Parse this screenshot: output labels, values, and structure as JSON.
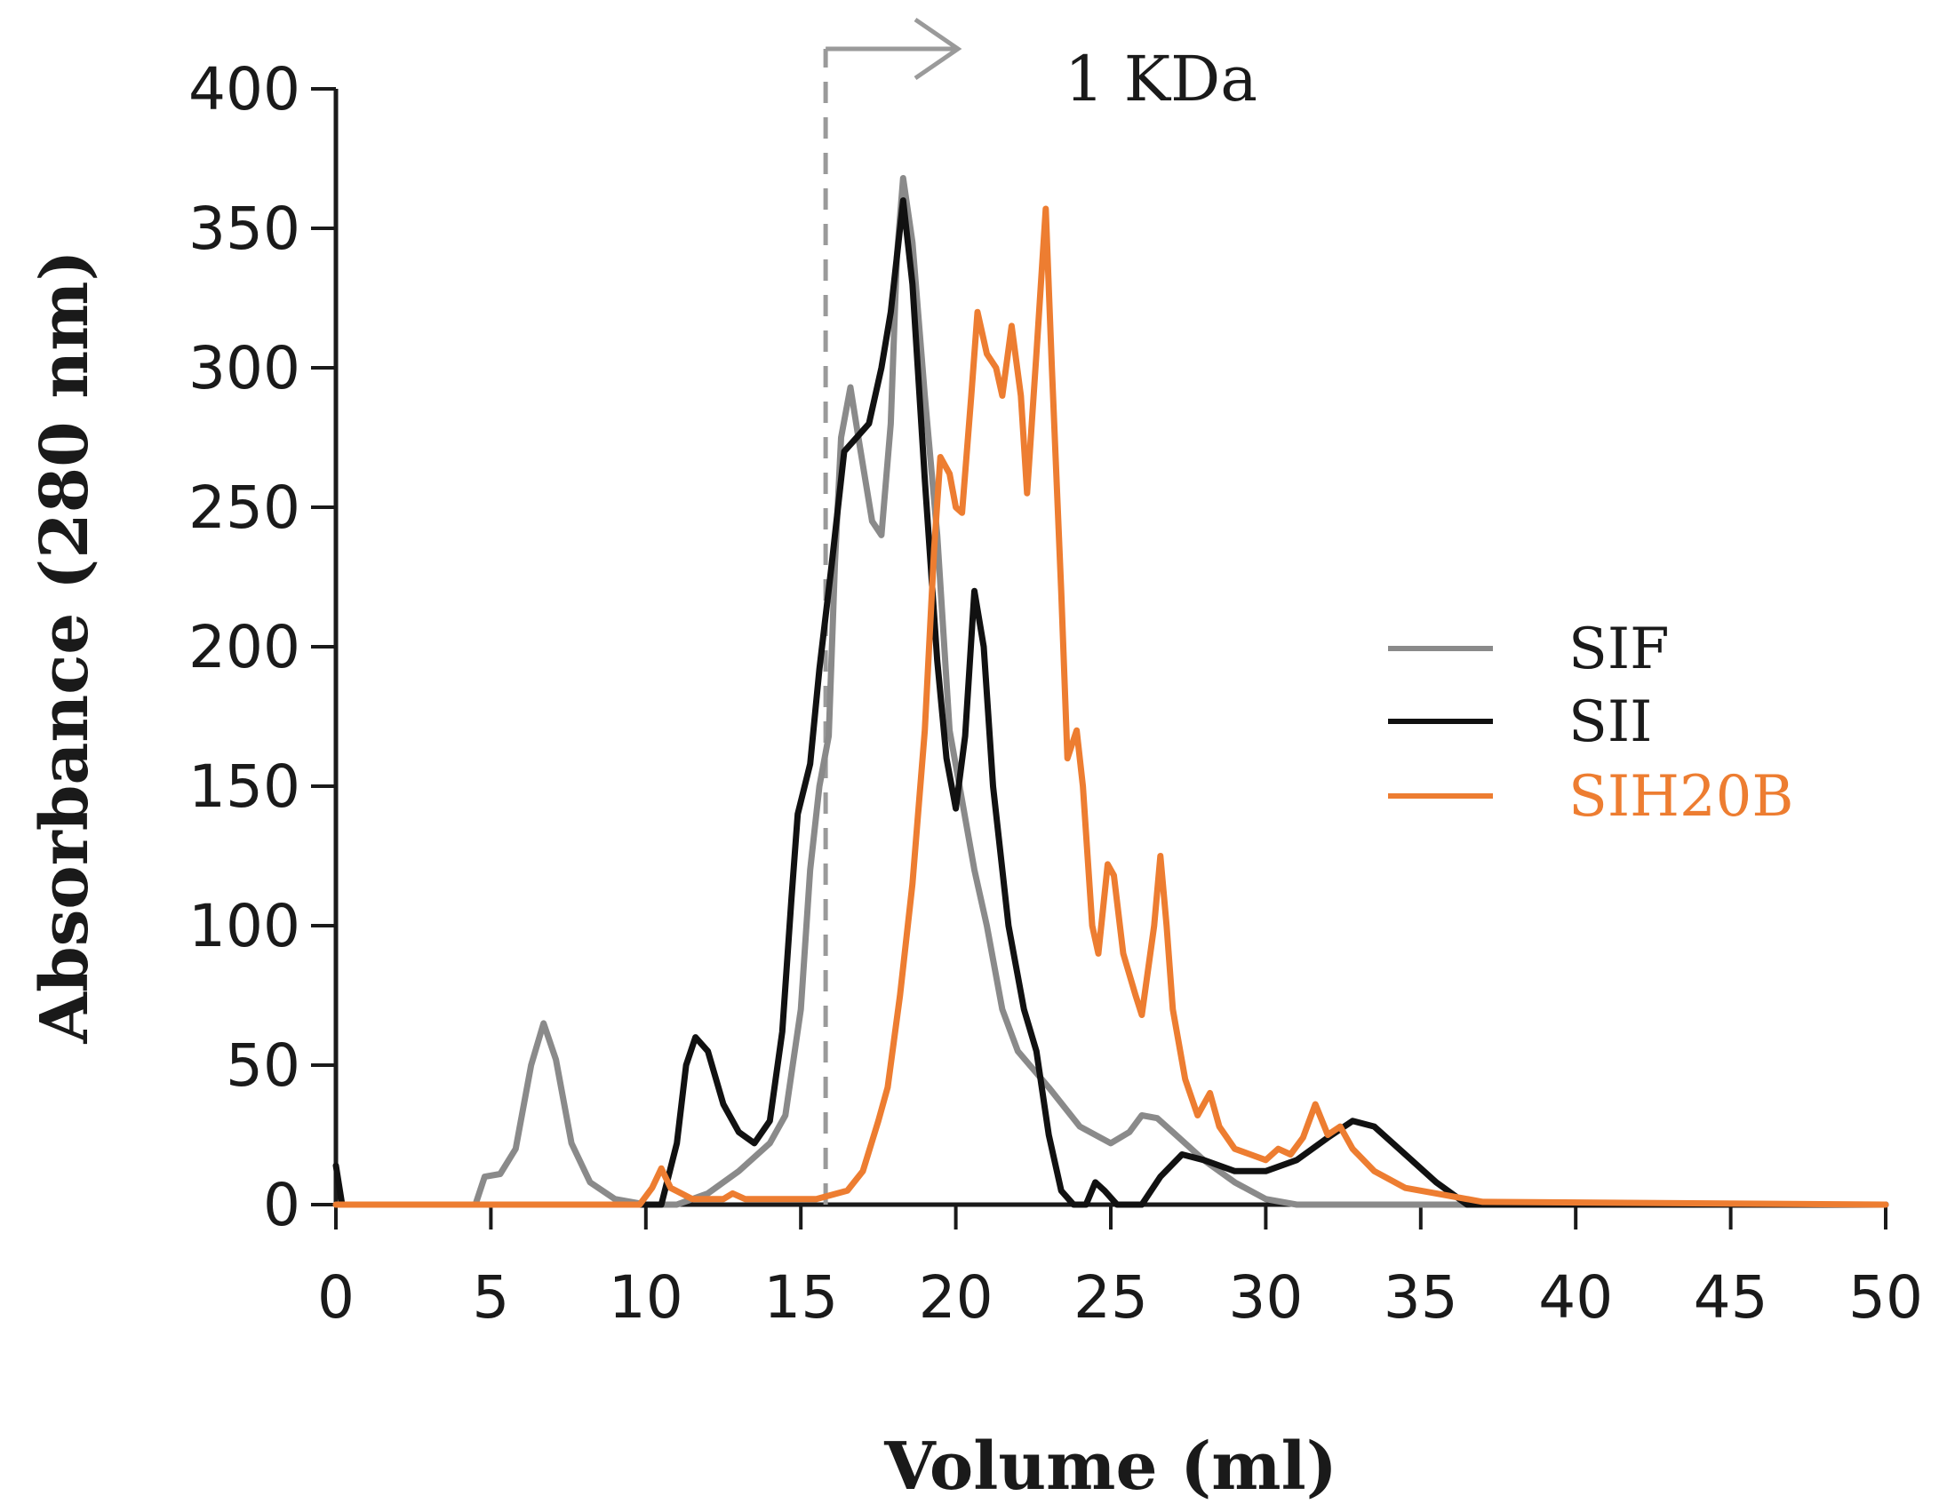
{
  "chart_data": {
    "type": "line",
    "title": "",
    "xlabel": "Volume (ml)",
    "ylabel": "Absorbance (280 nm)",
    "xlim": [
      0,
      50
    ],
    "ylim": [
      0,
      400
    ],
    "x_ticks": [
      0,
      5,
      10,
      15,
      20,
      25,
      30,
      35,
      40,
      45,
      50
    ],
    "y_ticks": [
      0,
      50,
      100,
      150,
      200,
      250,
      300,
      350,
      400
    ],
    "grid": false,
    "legend_position": "right",
    "annotation": {
      "label": "1 KDa",
      "x": 15.8
    },
    "series": [
      {
        "name": "SIF",
        "color": "#8a8a8a",
        "points": [
          [
            0,
            0
          ],
          [
            4.5,
            0
          ],
          [
            4.8,
            10
          ],
          [
            5.3,
            11
          ],
          [
            5.8,
            20
          ],
          [
            6.3,
            50
          ],
          [
            6.7,
            65
          ],
          [
            7.1,
            52
          ],
          [
            7.6,
            22
          ],
          [
            8.2,
            8
          ],
          [
            9,
            2
          ],
          [
            10,
            0
          ],
          [
            11,
            0
          ],
          [
            12,
            4
          ],
          [
            13,
            12
          ],
          [
            14,
            22
          ],
          [
            14.5,
            32
          ],
          [
            15,
            70
          ],
          [
            15.3,
            120
          ],
          [
            15.6,
            150
          ],
          [
            15.9,
            168
          ],
          [
            16.1,
            230
          ],
          [
            16.3,
            275
          ],
          [
            16.6,
            293
          ],
          [
            16.9,
            272
          ],
          [
            17.3,
            245
          ],
          [
            17.6,
            240
          ],
          [
            17.9,
            280
          ],
          [
            18.1,
            340
          ],
          [
            18.3,
            368
          ],
          [
            18.6,
            345
          ],
          [
            19,
            290
          ],
          [
            19.4,
            240
          ],
          [
            19.8,
            170
          ],
          [
            20.2,
            145
          ],
          [
            20.6,
            120
          ],
          [
            21,
            100
          ],
          [
            21.5,
            70
          ],
          [
            22,
            55
          ],
          [
            23,
            42
          ],
          [
            24,
            28
          ],
          [
            25,
            22
          ],
          [
            25.6,
            26
          ],
          [
            26,
            32
          ],
          [
            26.5,
            31
          ],
          [
            27,
            26
          ],
          [
            28,
            16
          ],
          [
            29,
            8
          ],
          [
            30,
            2
          ],
          [
            31,
            0
          ],
          [
            50,
            0
          ]
        ]
      },
      {
        "name": "SII",
        "color": "#111111",
        "points": [
          [
            0,
            14
          ],
          [
            0.2,
            0
          ],
          [
            10.5,
            0
          ],
          [
            11,
            22
          ],
          [
            11.3,
            50
          ],
          [
            11.6,
            60
          ],
          [
            12,
            55
          ],
          [
            12.5,
            36
          ],
          [
            13,
            26
          ],
          [
            13.5,
            22
          ],
          [
            14,
            30
          ],
          [
            14.4,
            62
          ],
          [
            14.7,
            110
          ],
          [
            14.9,
            140
          ],
          [
            15.3,
            158
          ],
          [
            15.6,
            192
          ],
          [
            16,
            230
          ],
          [
            16.4,
            270
          ],
          [
            16.8,
            275
          ],
          [
            17.2,
            280
          ],
          [
            17.6,
            300
          ],
          [
            17.9,
            320
          ],
          [
            18.3,
            360
          ],
          [
            18.6,
            330
          ],
          [
            19,
            260
          ],
          [
            19.4,
            195
          ],
          [
            19.7,
            160
          ],
          [
            20,
            142
          ],
          [
            20.3,
            168
          ],
          [
            20.6,
            220
          ],
          [
            20.9,
            200
          ],
          [
            21.2,
            150
          ],
          [
            21.7,
            100
          ],
          [
            22.2,
            70
          ],
          [
            22.6,
            55
          ],
          [
            23,
            25
          ],
          [
            23.4,
            5
          ],
          [
            23.8,
            0
          ],
          [
            24.2,
            0
          ],
          [
            24.5,
            8
          ],
          [
            24.8,
            5
          ],
          [
            25.2,
            0
          ],
          [
            26,
            0
          ],
          [
            26.6,
            10
          ],
          [
            27.3,
            18
          ],
          [
            28,
            16
          ],
          [
            29,
            12
          ],
          [
            30,
            12
          ],
          [
            31,
            16
          ],
          [
            32,
            24
          ],
          [
            32.8,
            30
          ],
          [
            33.5,
            28
          ],
          [
            34.5,
            18
          ],
          [
            35.5,
            8
          ],
          [
            36.5,
            0
          ],
          [
            50,
            0
          ]
        ]
      },
      {
        "name": "SIH20B",
        "color": "#ed7d31",
        "points": [
          [
            0,
            0
          ],
          [
            9.8,
            0
          ],
          [
            10.2,
            6
          ],
          [
            10.5,
            13
          ],
          [
            10.8,
            6
          ],
          [
            11.5,
            2
          ],
          [
            12.5,
            2
          ],
          [
            12.8,
            4
          ],
          [
            13.2,
            2
          ],
          [
            15.5,
            2
          ],
          [
            16.5,
            5
          ],
          [
            17,
            12
          ],
          [
            17.5,
            30
          ],
          [
            17.8,
            42
          ],
          [
            18.2,
            75
          ],
          [
            18.6,
            115
          ],
          [
            19,
            170
          ],
          [
            19.3,
            235
          ],
          [
            19.5,
            268
          ],
          [
            19.8,
            262
          ],
          [
            20,
            250
          ],
          [
            20.2,
            248
          ],
          [
            20.5,
            290
          ],
          [
            20.7,
            320
          ],
          [
            21,
            305
          ],
          [
            21.3,
            300
          ],
          [
            21.5,
            290
          ],
          [
            21.8,
            315
          ],
          [
            22.1,
            290
          ],
          [
            22.3,
            255
          ],
          [
            22.6,
            305
          ],
          [
            22.9,
            357
          ],
          [
            23.1,
            300
          ],
          [
            23.4,
            220
          ],
          [
            23.6,
            160
          ],
          [
            23.9,
            170
          ],
          [
            24.1,
            150
          ],
          [
            24.4,
            100
          ],
          [
            24.6,
            90
          ],
          [
            24.9,
            122
          ],
          [
            25.1,
            118
          ],
          [
            25.4,
            90
          ],
          [
            25.8,
            75
          ],
          [
            26,
            68
          ],
          [
            26.4,
            100
          ],
          [
            26.6,
            125
          ],
          [
            26.8,
            100
          ],
          [
            27,
            70
          ],
          [
            27.4,
            45
          ],
          [
            27.8,
            32
          ],
          [
            28.2,
            40
          ],
          [
            28.5,
            28
          ],
          [
            29,
            20
          ],
          [
            29.5,
            18
          ],
          [
            30,
            16
          ],
          [
            30.4,
            20
          ],
          [
            30.8,
            18
          ],
          [
            31.2,
            24
          ],
          [
            31.6,
            36
          ],
          [
            32,
            25
          ],
          [
            32.4,
            28
          ],
          [
            32.8,
            20
          ],
          [
            33.5,
            12
          ],
          [
            34.5,
            6
          ],
          [
            35.5,
            4
          ],
          [
            37,
            1
          ],
          [
            50,
            0
          ]
        ]
      }
    ]
  }
}
